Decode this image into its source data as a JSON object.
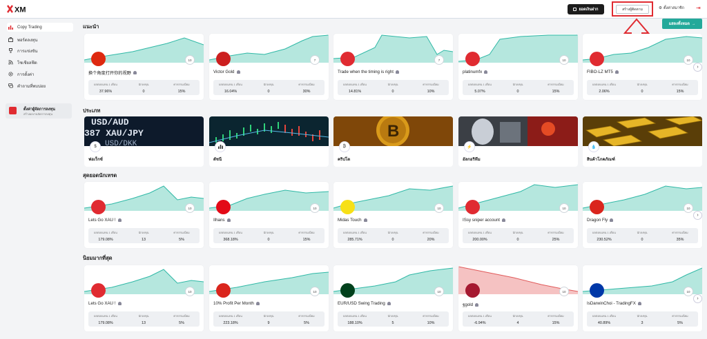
{
  "header": {
    "logo": "XM",
    "wallet_btn": "ยอดเงินฝาก",
    "create_btn": "สร้างผู้ติดตาม",
    "settings_btn": "ตั้งค่าสมาชิก"
  },
  "sidebar": {
    "items": [
      {
        "label": "Copy Trading",
        "icon": "chart-icon"
      },
      {
        "label": "พอร์ตลงทุน",
        "icon": "briefcase-icon"
      },
      {
        "label": "การแข่งขัน",
        "icon": "trophy-icon"
      },
      {
        "label": "โซเชียลฟีด",
        "icon": "feed-icon"
      },
      {
        "label": "การตั้งค่า",
        "icon": "gear-icon"
      },
      {
        "label": "คำถามที่พบบ่อย",
        "icon": "chat-icon"
      }
    ],
    "user_title": "ตั้งค่าผู้จัดการลงทุน",
    "user_sub": "สร้างผลงานจัดการลงทุน"
  },
  "sections": {
    "recommended": "แนะนำ",
    "categories": "ประเภท",
    "top_traders": "สุดยอดนักเทรด",
    "popular": "นิยมมากที่สุด",
    "show_all": "แสดงทั้งหมด"
  },
  "stat_labels": {
    "profit": "ผลตอบแทน 1 เดือน",
    "investors": "นักลงทุน",
    "fee": "ค่าธรรมเนียม"
  },
  "recommended_cards": [
    {
      "name": "换个角度打开你的视野",
      "profit": "37.96%",
      "investors": "0",
      "fee": "15%",
      "badge": "10"
    },
    {
      "name": "Victor Gold",
      "profit": "16.04%",
      "investors": "0",
      "fee": "30%",
      "badge": "7"
    },
    {
      "name": "Trade when the timing is right",
      "profit": "14.81%",
      "investors": "0",
      "fee": "10%",
      "badge": "7"
    },
    {
      "name": "platinumfx",
      "profit": "5.07%",
      "investors": "0",
      "fee": "15%",
      "badge": "10"
    },
    {
      "name": "FIBO-LZ MT5",
      "profit": "2.06%",
      "investors": "0",
      "fee": "15%",
      "badge": "10"
    }
  ],
  "categories": [
    {
      "label": "ฟอเร็กซ์",
      "icon": "dollar-icon"
    },
    {
      "label": "ดัชนี",
      "icon": "bar-chart-icon"
    },
    {
      "label": "คริปโต",
      "icon": "bitcoin-icon"
    },
    {
      "label": "อัลกอริทึม",
      "icon": "bolt-icon"
    },
    {
      "label": "สินค้าโภคภัณฑ์",
      "icon": "drop-icon"
    }
  ],
  "top_cards": [
    {
      "name": "Lets Go XAU !",
      "profit": "179.08%",
      "investors": "13",
      "fee": "5%",
      "badge": "10"
    },
    {
      "name": "Ilhans",
      "profit": "368.18%",
      "investors": "0",
      "fee": "15%",
      "badge": "10"
    },
    {
      "name": "Midas Touch",
      "profit": "285.71%",
      "investors": "0",
      "fee": "20%",
      "badge": "10"
    },
    {
      "name": "ISsy sniper account",
      "profit": "200.00%",
      "investors": "0",
      "fee": "25%",
      "badge": "10"
    },
    {
      "name": "Dragon Fly",
      "profit": "230.52%",
      "investors": "0",
      "fee": "35%",
      "badge": "10"
    }
  ],
  "popular_cards": [
    {
      "name": "Lets Go XAU !",
      "profit": "179.08%",
      "investors": "13",
      "fee": "5%",
      "badge": "10"
    },
    {
      "name": "10% Profit Per Month",
      "profit": "223.18%",
      "investors": "9",
      "fee": "5%",
      "badge": "10"
    },
    {
      "name": "EUR/USD Swing Trading",
      "profit": "188.10%",
      "investors": "5",
      "fee": "10%",
      "badge": "10"
    },
    {
      "name": "ฐgold",
      "profit": "-6.94%",
      "investors": "4",
      "fee": "15%",
      "badge": "10"
    },
    {
      "name": "IsDarwinChoi - TradingFX",
      "profit": "40.89%",
      "investors": "3",
      "fee": "5%",
      "badge": "10"
    }
  ],
  "colors": {
    "accent": "#23a99a",
    "chart_up": "#a8e3d8",
    "chart_down": "#f3b7b7",
    "annotation": "#e02b31"
  }
}
